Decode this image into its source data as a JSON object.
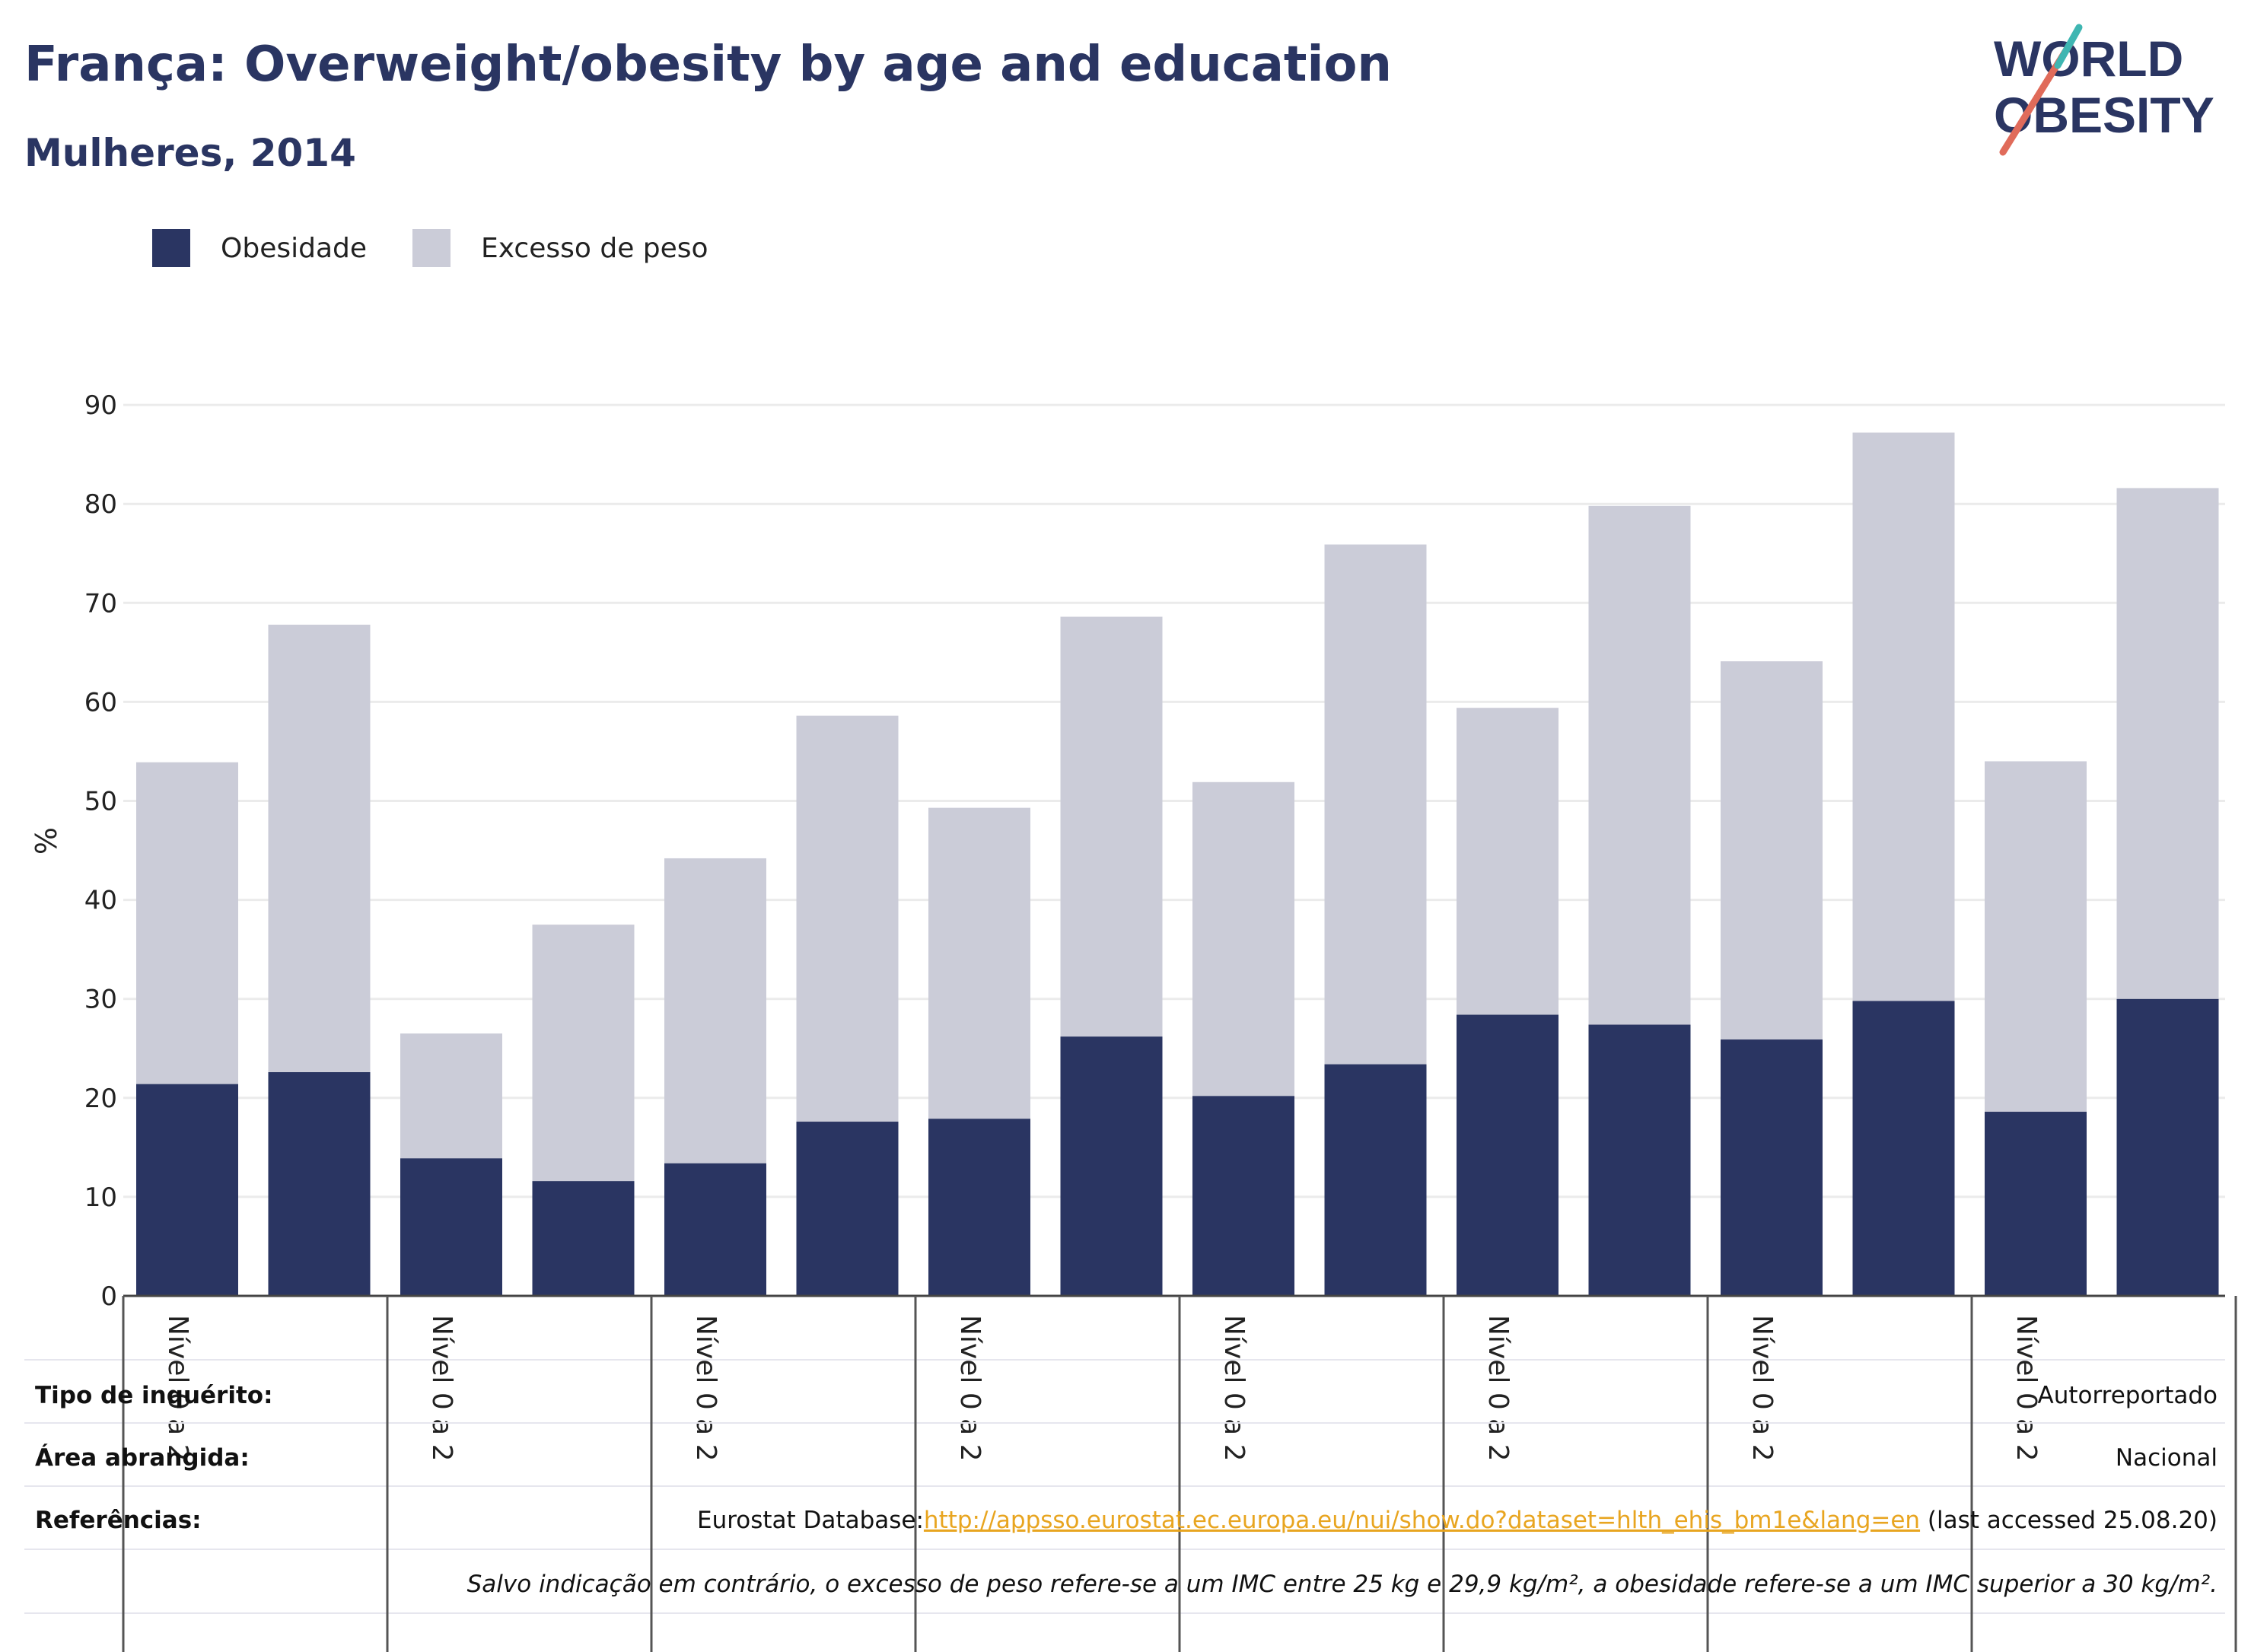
{
  "title": "França: Overweight/obesity by age and education",
  "subtitle": "Mulheres, 2014",
  "logo": {
    "line1": "WORLD",
    "line2": "OBESITY"
  },
  "colors": {
    "obesity": "#2a3562",
    "overweight": "#cbccd8",
    "brand": "#2a3562",
    "link": "#e8a520"
  },
  "legend": [
    {
      "label": "Obesidade",
      "color": "#2a3562"
    },
    {
      "label": "Excesso de peso",
      "color": "#cbccd8"
    }
  ],
  "chart_data": {
    "type": "bar",
    "stacked": true,
    "ylabel": "%",
    "ylim": [
      0,
      90
    ],
    "yticks": [
      0,
      10,
      20,
      30,
      40,
      50,
      60,
      70,
      80,
      90
    ],
    "grid": true,
    "legend_position": "top-left",
    "x_group_labels": [
      "Nível 0 a 2",
      "Nível 0 a 2",
      "Nível 0 a 2",
      "Nível 0 a 2",
      "Nível 0 a 2",
      "Nível 0 a 2",
      "Nível 0 a 2",
      "Nível 0 a 2"
    ],
    "series": [
      {
        "name": "Obesidade",
        "values": [
          21.4,
          22.6,
          13.9,
          11.6,
          13.4,
          17.6,
          17.9,
          26.2,
          20.2,
          23.4,
          28.4,
          27.4,
          25.9,
          29.8,
          18.6,
          30.0
        ]
      },
      {
        "name": "Excesso de peso",
        "values": [
          32.5,
          45.2,
          12.6,
          25.9,
          30.8,
          41.0,
          31.4,
          42.4,
          31.7,
          52.5,
          31.0,
          52.4,
          38.2,
          57.4,
          35.4,
          51.6
        ]
      }
    ]
  },
  "info": {
    "survey_label": "Tipo de inquérito:",
    "survey_value": "Autorreportado",
    "area_label": "Área abrangida:",
    "area_value": "Nacional",
    "refs_label": "Referências:",
    "refs_prefix": "Eurostat Database:",
    "refs_link": "http://appsso.eurostat.ec.europa.eu/nui/show.do?dataset=hlth_ehis_bm1e&lang=en",
    "refs_suffix": " (last accessed 25.08.20)",
    "note": "Salvo indicação em contrário, o excesso de peso refere-se a um IMC entre 25 kg e 29,9 kg/m², a obesidade refere-se a um IMC superior a 30 kg/m²."
  }
}
